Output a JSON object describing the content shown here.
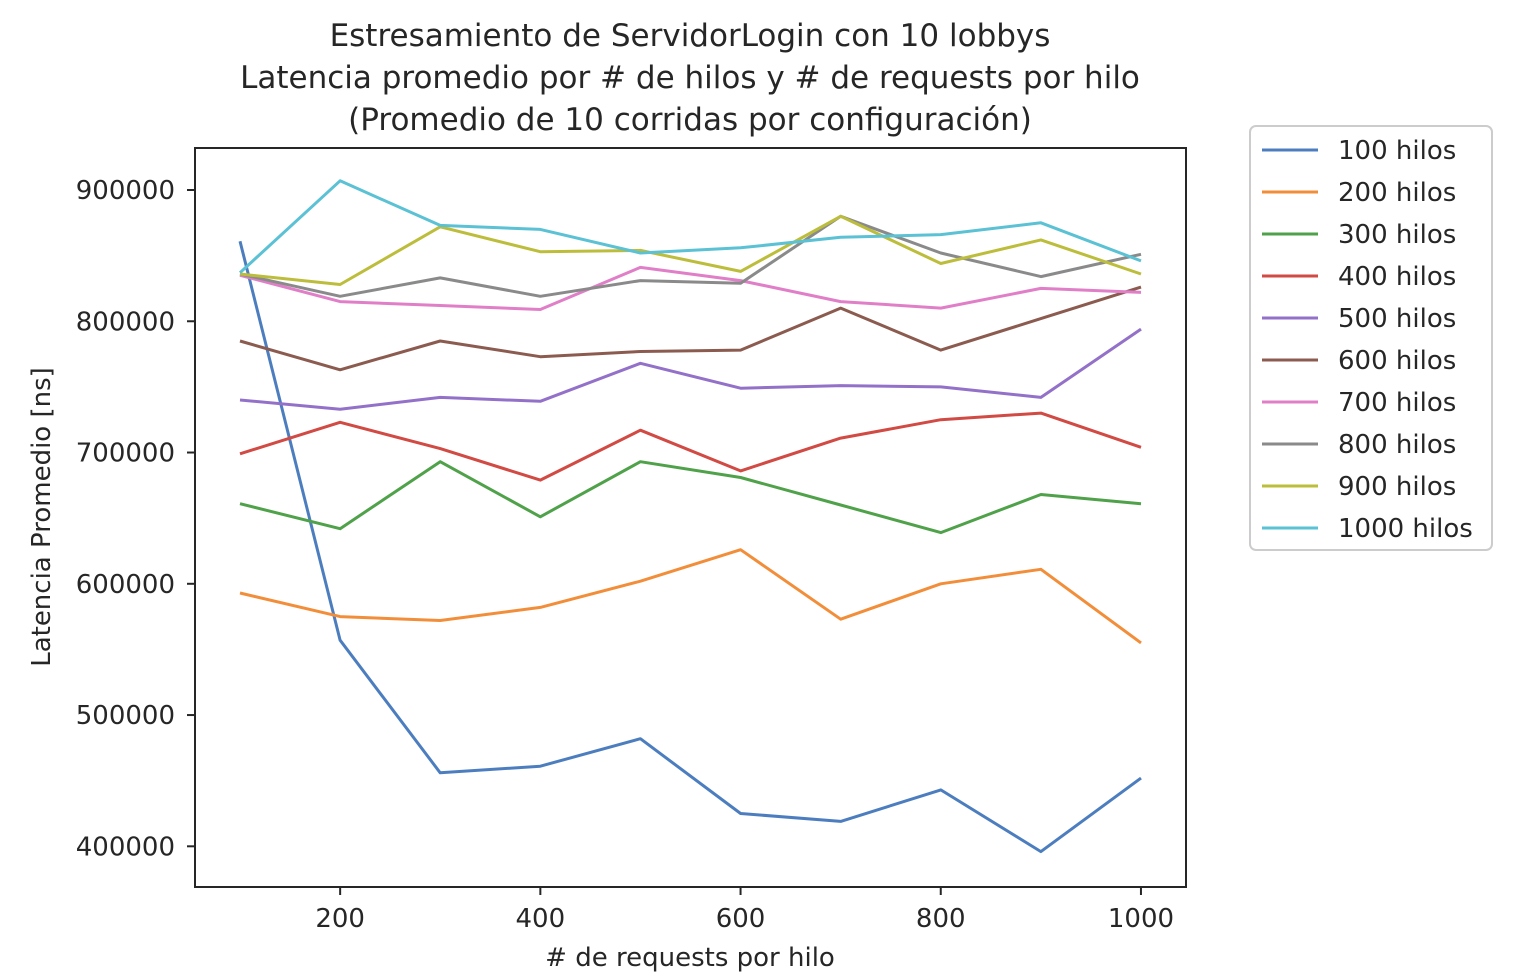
{
  "chart_data": {
    "type": "line",
    "title_lines": [
      "Estresamiento de ServidorLogin con 10 lobbys",
      "Latencia promedio por # de hilos y # de requests por hilo",
      "(Promedio de 10 corridas por configuración)"
    ],
    "xlabel": "# de requests por hilo",
    "ylabel": "Latencia Promedio [ns]",
    "xlim": [
      55,
      1045
    ],
    "ylim": [
      369000,
      932000
    ],
    "xticks": [
      200,
      400,
      600,
      800,
      1000
    ],
    "yticks": [
      400000,
      500000,
      600000,
      700000,
      800000,
      900000
    ],
    "grid": false,
    "legend_placement": "outside right, top",
    "x": [
      100,
      200,
      300,
      400,
      500,
      600,
      700,
      800,
      900,
      1000
    ],
    "series": [
      {
        "name": "100 hilos",
        "color": "#4c7ebf",
        "values": [
          861000,
          557000,
          456000,
          461000,
          482000,
          425000,
          419000,
          443000,
          396000,
          452000
        ]
      },
      {
        "name": "200 hilos",
        "color": "#f28e3a",
        "values": [
          593000,
          575000,
          572000,
          582000,
          602000,
          626000,
          573000,
          600000,
          611000,
          555000
        ]
      },
      {
        "name": "300 hilos",
        "color": "#4fa24a",
        "values": [
          661000,
          642000,
          693000,
          651000,
          693000,
          681000,
          660000,
          639000,
          668000,
          661000
        ]
      },
      {
        "name": "400 hilos",
        "color": "#d14a43",
        "values": [
          699000,
          723000,
          703000,
          679000,
          717000,
          686000,
          711000,
          725000,
          730000,
          704000
        ]
      },
      {
        "name": "500 hilos",
        "color": "#9371c9",
        "values": [
          740000,
          733000,
          742000,
          739000,
          768000,
          749000,
          751000,
          750000,
          742000,
          794000
        ]
      },
      {
        "name": "600 hilos",
        "color": "#8c5b4f",
        "values": [
          785000,
          763000,
          785000,
          773000,
          777000,
          778000,
          810000,
          778000,
          802000,
          826000
        ]
      },
      {
        "name": "700 hilos",
        "color": "#e07fc8",
        "values": [
          835000,
          815000,
          812000,
          809000,
          841000,
          831000,
          815000,
          810000,
          825000,
          822000
        ]
      },
      {
        "name": "800 hilos",
        "color": "#8a8a8a",
        "values": [
          836000,
          819000,
          833000,
          819000,
          831000,
          829000,
          880000,
          852000,
          834000,
          851000
        ]
      },
      {
        "name": "900 hilos",
        "color": "#bdbd3c",
        "values": [
          836000,
          828000,
          872000,
          853000,
          854000,
          838000,
          880000,
          844000,
          862000,
          836000
        ]
      },
      {
        "name": "1000 hilos",
        "color": "#5bc1d4",
        "values": [
          837000,
          907000,
          873000,
          870000,
          852000,
          856000,
          864000,
          866000,
          875000,
          846000
        ]
      }
    ]
  }
}
